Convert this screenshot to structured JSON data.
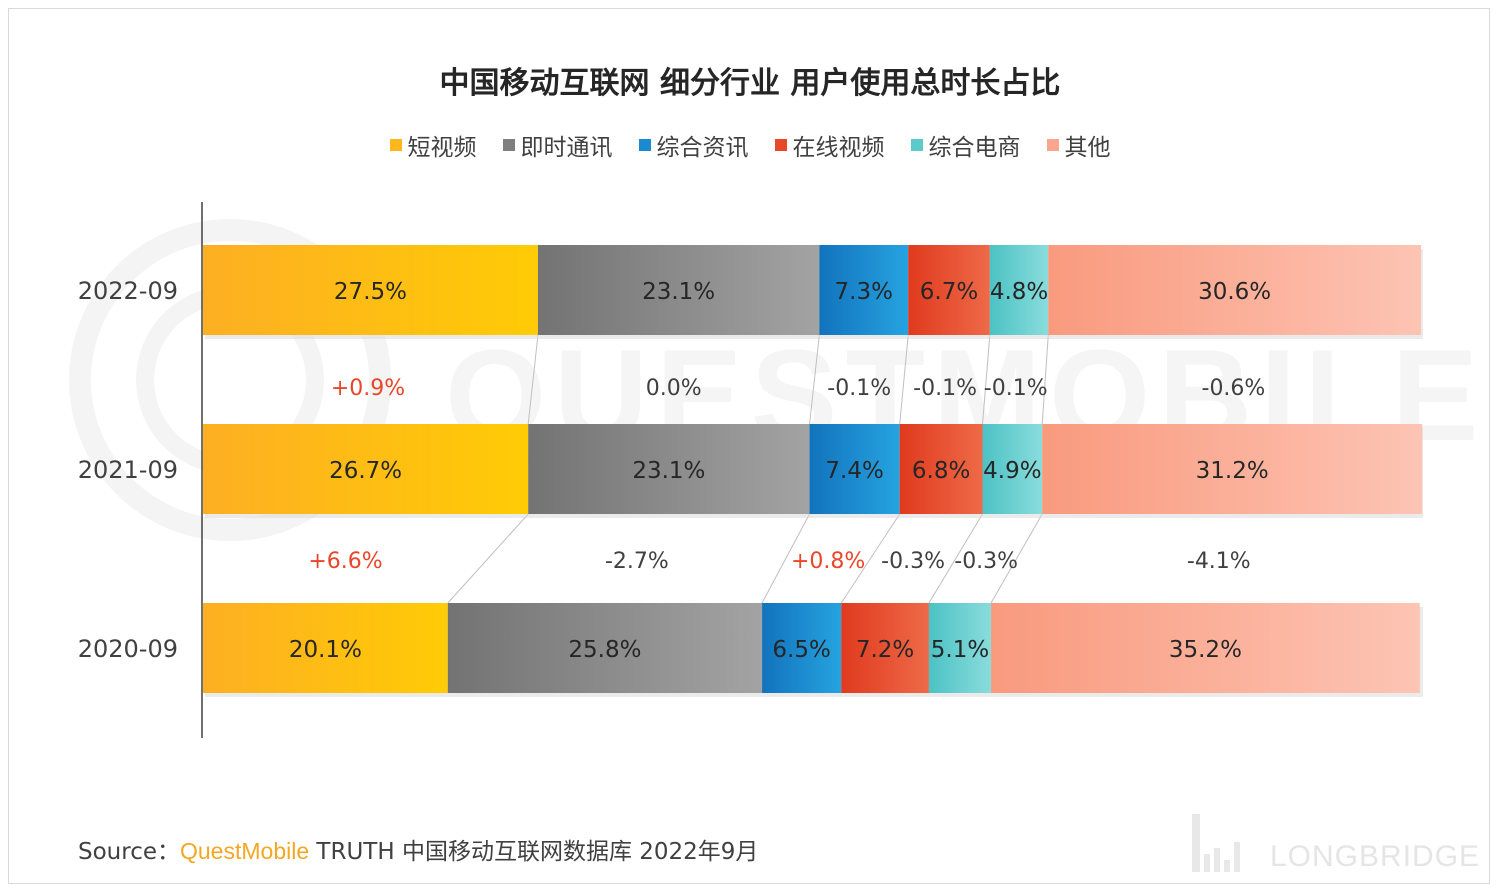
{
  "title": "中国移动互联网 细分行业 用户使用总时长占比",
  "colors": {
    "短视频": "#FFB71C",
    "即时通讯": "#7F7F7F",
    "综合资讯": "#1A8BD0",
    "在线视频": "#E8472A",
    "综合电商": "#5CC9CB",
    "其他": "#FAA58E"
  },
  "chart_data": {
    "type": "bar",
    "orientation": "horizontal",
    "stacked": true,
    "categories": [
      "2022-09",
      "2021-09",
      "2020-09"
    ],
    "series": [
      {
        "name": "短视频",
        "values": [
          27.5,
          26.7,
          20.1
        ],
        "labels": [
          "27.5%",
          "26.7%",
          "20.1%"
        ]
      },
      {
        "name": "即时通讯",
        "values": [
          23.1,
          23.1,
          25.8
        ],
        "labels": [
          "23.1%",
          "23.1%",
          "25.8%"
        ]
      },
      {
        "name": "综合资讯",
        "values": [
          7.3,
          7.4,
          6.5
        ],
        "labels": [
          "7.3%",
          "7.4%",
          "6.5%"
        ]
      },
      {
        "name": "在线视频",
        "values": [
          6.7,
          6.8,
          7.2
        ],
        "labels": [
          "6.7%",
          "6.8%",
          "7.2%"
        ]
      },
      {
        "name": "综合电商",
        "values": [
          4.8,
          4.9,
          5.1
        ],
        "labels": [
          "4.8%",
          "4.9%",
          "5.1%"
        ]
      },
      {
        "name": "其他",
        "values": [
          30.6,
          31.2,
          35.2
        ],
        "labels": [
          "30.6%",
          "31.2%",
          "35.2%"
        ]
      }
    ],
    "changes": [
      {
        "between": [
          "2021-09",
          "2022-09"
        ],
        "values": [
          "+0.9%",
          "0.0%",
          "-0.1%",
          "-0.1%",
          "-0.1%",
          "-0.6%"
        ]
      },
      {
        "between": [
          "2020-09",
          "2021-09"
        ],
        "values": [
          "+6.6%",
          "-2.7%",
          "+0.8%",
          "-0.3%",
          "-0.3%",
          "-4.1%"
        ]
      }
    ],
    "xlim": [
      0,
      100
    ],
    "legend_position": "top"
  },
  "footer": {
    "source_label": "Source：",
    "brand": "QuestMobile",
    "text": " TRUTH 中国移动互联网数据库 2022年9月"
  },
  "watermark": {
    "text_questmobile": "QUESTMOBILE",
    "text_longbridge": "LONGBRIDGE"
  }
}
